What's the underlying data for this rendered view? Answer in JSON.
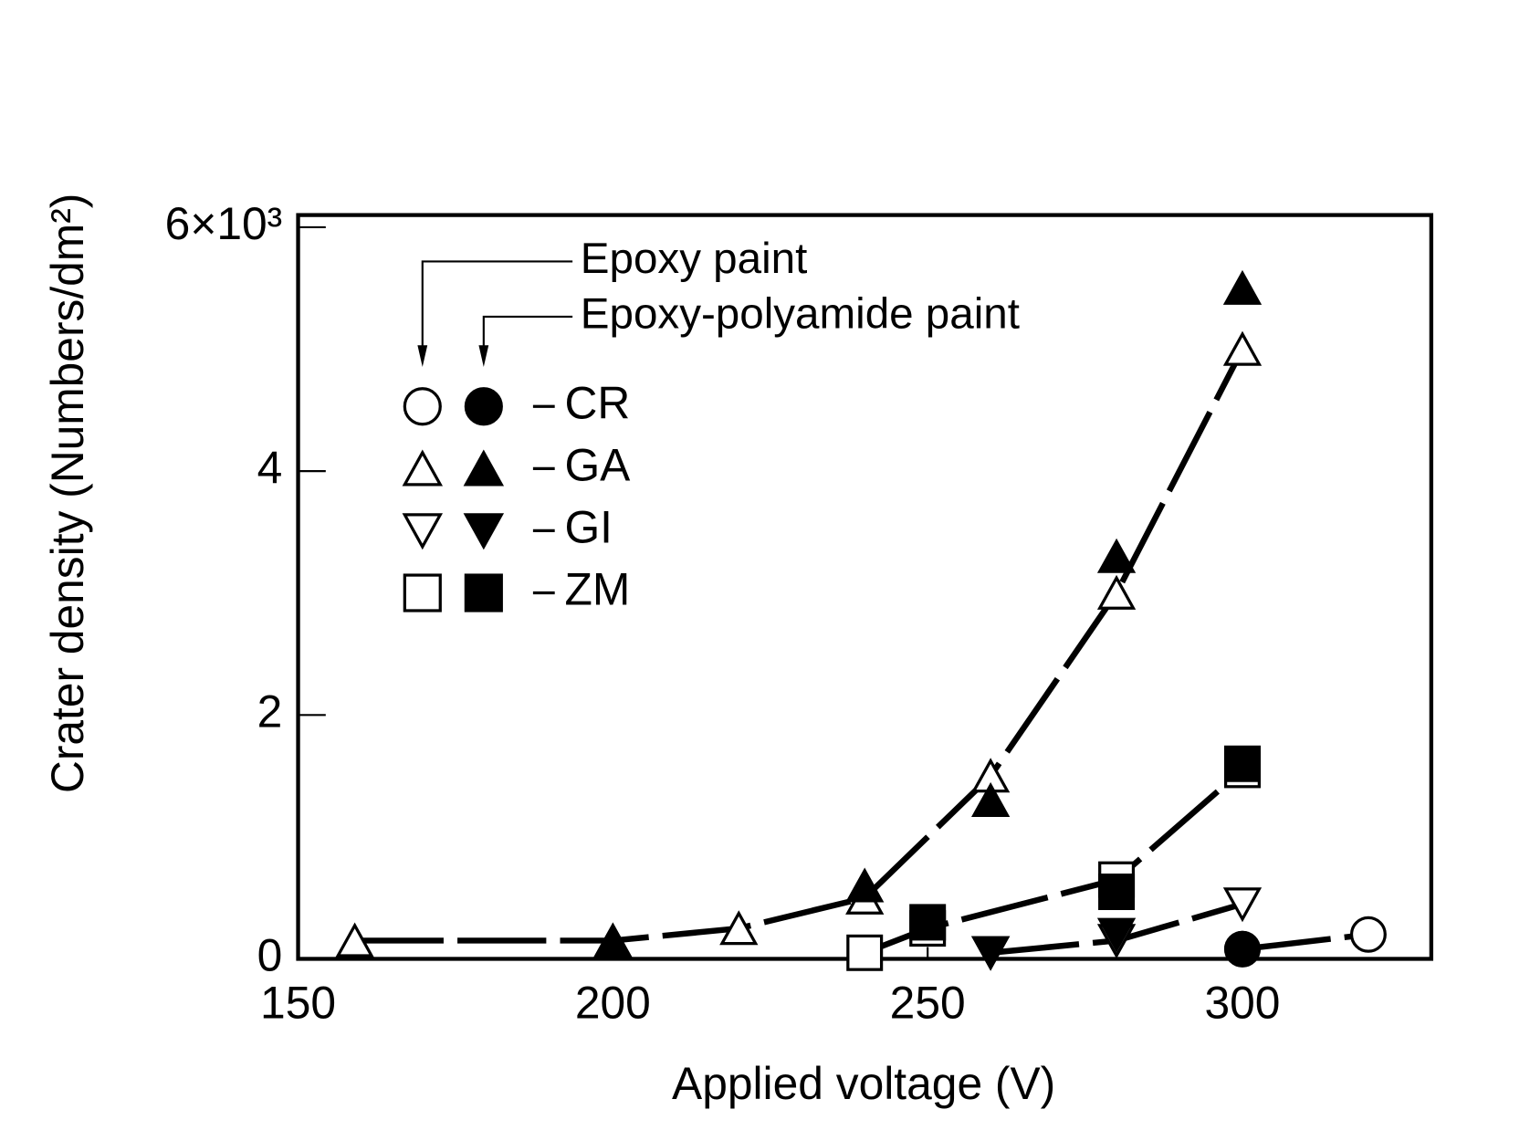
{
  "chart_data": {
    "type": "scatter",
    "xlabel": "Applied voltage (V)",
    "ylabel": "Crater density (Numbers/dm²)",
    "xlim": [
      150,
      330
    ],
    "xticks": [
      150,
      200,
      250,
      300
    ],
    "ylim": [
      0,
      6.1
    ],
    "yticks": [
      0,
      2,
      4,
      {
        "value": 6,
        "label": "6×10³"
      }
    ],
    "color": "#000000",
    "paints": [
      {
        "name": "Epoxy paint",
        "filled": false
      },
      {
        "name": "Epoxy-polyamide paint",
        "filled": true
      }
    ],
    "series": [
      {
        "name": "CR",
        "marker": "circle",
        "data": [
          {
            "x": [
              300,
              320
            ],
            "values": [
              0.08,
              0.2
            ]
          },
          {
            "x": [
              300
            ],
            "values": [
              0.08
            ]
          }
        ]
      },
      {
        "name": "GA",
        "marker": "triangle-up",
        "data": [
          {
            "x": [
              159,
              200,
              220,
              240,
              260,
              280,
              300
            ],
            "values": [
              0.15,
              0.15,
              0.25,
              0.5,
              1.5,
              3.0,
              5.0
            ]
          },
          {
            "x": [
              200,
              240,
              260,
              280,
              300
            ],
            "values": [
              0.15,
              0.6,
              1.3,
              3.3,
              5.5
            ]
          }
        ]
      },
      {
        "name": "GI",
        "marker": "triangle-down",
        "data": [
          {
            "x": [
              260,
              280,
              300
            ],
            "values": [
              0.05,
              0.15,
              0.45
            ]
          },
          {
            "x": [
              260,
              280
            ],
            "values": [
              0.05,
              0.2
            ]
          }
        ]
      },
      {
        "name": "ZM",
        "marker": "square",
        "data": [
          {
            "x": [
              240,
              250,
              280,
              300
            ],
            "values": [
              0.05,
              0.25,
              0.65,
              1.55
            ]
          },
          {
            "x": [
              250,
              280,
              300
            ],
            "values": [
              0.3,
              0.55,
              1.6
            ]
          }
        ]
      }
    ]
  }
}
